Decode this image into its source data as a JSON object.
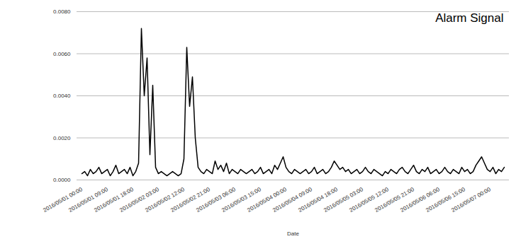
{
  "chart_data": {
    "type": "line",
    "title": "Alarm Signal",
    "x_label": "Date",
    "color": "#000000",
    "grid": true,
    "ylim": [
      0,
      0.008
    ],
    "yticks": [
      {
        "value": 0,
        "label": "0.0000"
      },
      {
        "value": 0.002,
        "label": "0.0020"
      },
      {
        "value": 0.004,
        "label": "0.0040"
      },
      {
        "value": 0.006,
        "label": "0.0060"
      },
      {
        "value": 0.008,
        "label": "0.0080"
      }
    ],
    "categories": [
      "2016/05/01 00:00",
      null,
      null,
      null,
      null,
      null,
      null,
      null,
      null,
      "2016/05/01 09:00",
      null,
      null,
      null,
      null,
      null,
      null,
      null,
      null,
      "2016/05/01 18:00",
      null,
      null,
      null,
      null,
      null,
      null,
      null,
      null,
      "2016/05/02 03:00",
      null,
      null,
      null,
      null,
      null,
      null,
      null,
      null,
      "2016/05/02 12:00",
      null,
      null,
      null,
      null,
      null,
      null,
      null,
      null,
      "2016/05/02 21:00",
      null,
      null,
      null,
      null,
      null,
      null,
      null,
      null,
      "2016/05/03 06:00",
      null,
      null,
      null,
      null,
      null,
      null,
      null,
      null,
      "2016/05/03 15:00",
      null,
      null,
      null,
      null,
      null,
      null,
      null,
      null,
      "2016/05/04 00:00",
      null,
      null,
      null,
      null,
      null,
      null,
      null,
      null,
      "2016/05/04 09:00",
      null,
      null,
      null,
      null,
      null,
      null,
      null,
      null,
      "2016/05/04 18:00",
      null,
      null,
      null,
      null,
      null,
      null,
      null,
      null,
      "2016/05/05 03:00",
      null,
      null,
      null,
      null,
      null,
      null,
      null,
      null,
      "2016/05/05 12:00",
      null,
      null,
      null,
      null,
      null,
      null,
      null,
      null,
      "2016/05/05 21:00",
      null,
      null,
      null,
      null,
      null,
      null,
      null,
      null,
      "2016/05/06 06:00",
      null,
      null,
      null,
      null,
      null,
      null,
      null,
      null,
      "2016/05/06 15:00",
      null,
      null,
      null,
      null,
      null,
      null,
      null,
      null,
      "2016/05/07 00:00",
      null,
      null,
      null,
      null,
      null
    ],
    "values": [
      0.0003,
      0.0004,
      0.0002,
      0.0005,
      0.0003,
      0.0004,
      0.0006,
      0.0003,
      0.0004,
      0.0005,
      0.0002,
      0.0004,
      0.0007,
      0.0003,
      0.0004,
      0.0005,
      0.0003,
      0.0006,
      0.0002,
      0.0004,
      0.0008,
      0.0072,
      0.004,
      0.0058,
      0.0012,
      0.0045,
      0.0006,
      0.0003,
      0.0004,
      0.0003,
      0.0002,
      0.0003,
      0.0004,
      0.0003,
      0.0002,
      0.0003,
      0.001,
      0.0063,
      0.0035,
      0.0049,
      0.002,
      0.0006,
      0.0004,
      0.0003,
      0.0005,
      0.0004,
      0.0003,
      0.0009,
      0.0005,
      0.0007,
      0.0004,
      0.0008,
      0.0003,
      0.0005,
      0.0004,
      0.0003,
      0.0005,
      0.0004,
      0.0003,
      0.0004,
      0.0005,
      0.0003,
      0.0004,
      0.0006,
      0.0003,
      0.0004,
      0.0005,
      0.0003,
      0.0007,
      0.0005,
      0.0008,
      0.0011,
      0.0006,
      0.0004,
      0.0003,
      0.0005,
      0.0004,
      0.0003,
      0.0004,
      0.0005,
      0.0003,
      0.0004,
      0.0006,
      0.0003,
      0.0004,
      0.0005,
      0.0003,
      0.0004,
      0.0006,
      0.0009,
      0.0007,
      0.0005,
      0.0006,
      0.0004,
      0.0005,
      0.0003,
      0.0004,
      0.0005,
      0.0003,
      0.0004,
      0.0006,
      0.0004,
      0.0003,
      0.0005,
      0.0004,
      0.0003,
      0.0002,
      0.0004,
      0.0003,
      0.0005,
      0.0004,
      0.0003,
      0.0005,
      0.0006,
      0.0004,
      0.0003,
      0.0005,
      0.0007,
      0.0004,
      0.0003,
      0.0005,
      0.0004,
      0.0006,
      0.0003,
      0.0004,
      0.0005,
      0.0003,
      0.0004,
      0.0006,
      0.0004,
      0.0003,
      0.0005,
      0.0004,
      0.0003,
      0.0006,
      0.0004,
      0.0005,
      0.0003,
      0.0004,
      0.0007,
      0.0009,
      0.0011,
      0.0008,
      0.0005,
      0.0004,
      0.0006,
      0.0003,
      0.0005,
      0.0004,
      0.0006
    ]
  }
}
